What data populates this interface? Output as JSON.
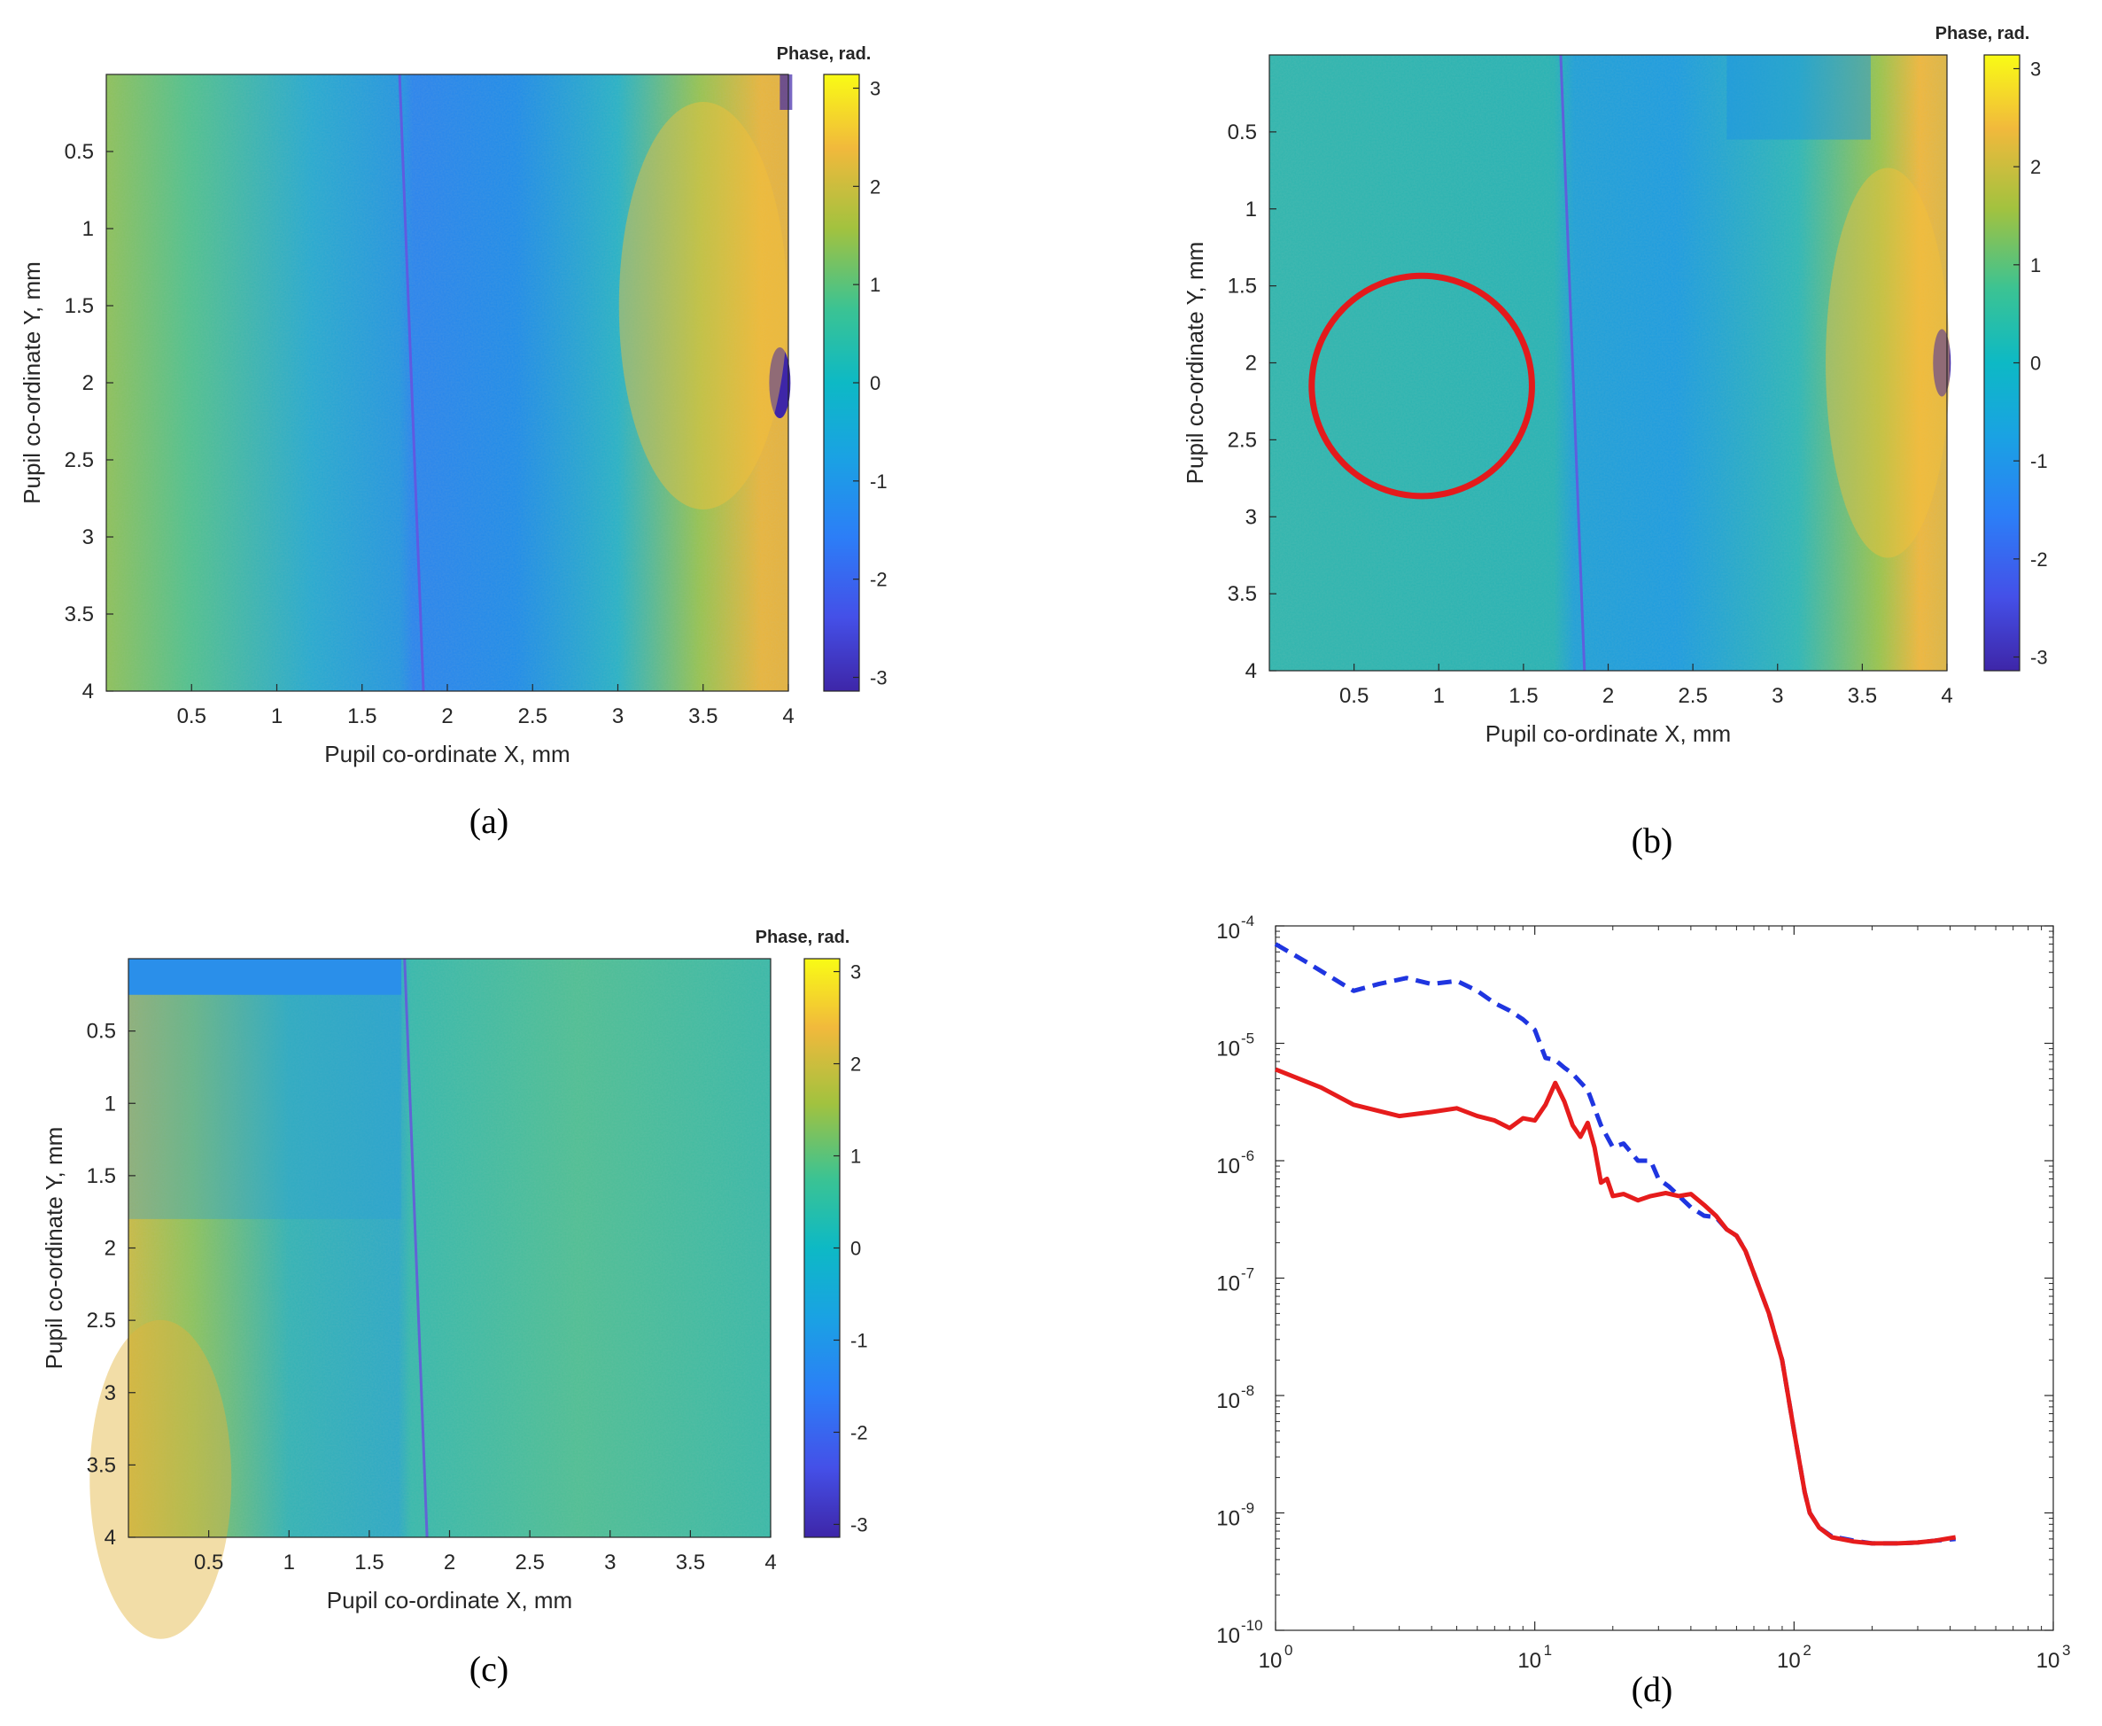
{
  "figure": {
    "panels": [
      {
        "id": "a",
        "label": "(a)"
      },
      {
        "id": "b",
        "label": "(b)"
      },
      {
        "id": "c",
        "label": "(c)"
      },
      {
        "id": "d",
        "label": "(d)"
      }
    ]
  },
  "chart_data": [
    {
      "panel": "a",
      "type": "heatmap",
      "title": "",
      "xlabel": "Pupil co-ordinate X, mm",
      "ylabel": "Pupil co-ordinate Y, mm",
      "xlim": [
        0,
        4
      ],
      "ylim": [
        0,
        4
      ],
      "xticks": [
        0.5,
        1,
        1.5,
        2,
        2.5,
        3,
        3.5,
        4
      ],
      "xtick_labels": [
        "0.5",
        "1",
        "1.5",
        "2",
        "2.5",
        "3",
        "3.5",
        "4"
      ],
      "yticks": [
        0.5,
        1,
        1.5,
        2,
        2.5,
        3,
        3.5,
        4
      ],
      "ytick_labels": [
        "0.5",
        "1",
        "1.5",
        "2",
        "2.5",
        "3",
        "3.5",
        "4"
      ],
      "colorbar": {
        "label": "Phase, rad.",
        "min": -3.14,
        "max": 3.14,
        "ticks": [
          -3,
          -2,
          -1,
          0,
          1,
          2,
          3
        ],
        "tick_labels": [
          "-3",
          "-2",
          "-1",
          "0",
          "1",
          "2",
          "3"
        ]
      },
      "description_values": {
        "phase_step_x_mm": 1.8
      }
    },
    {
      "panel": "b",
      "type": "heatmap",
      "title": "",
      "xlabel": "Pupil co-ordinate X, mm",
      "ylabel": "Pupil co-ordinate Y, mm",
      "xlim": [
        0,
        4
      ],
      "ylim": [
        0,
        4
      ],
      "xticks": [
        0.5,
        1,
        1.5,
        2,
        2.5,
        3,
        3.5,
        4
      ],
      "xtick_labels": [
        "0.5",
        "1",
        "1.5",
        "2",
        "2.5",
        "3",
        "3.5",
        "4"
      ],
      "yticks": [
        0.5,
        1,
        1.5,
        2,
        2.5,
        3,
        3.5,
        4
      ],
      "ytick_labels": [
        "0.5",
        "1",
        "1.5",
        "2",
        "2.5",
        "3",
        "3.5",
        "4"
      ],
      "colorbar": {
        "label": "Phase, rad.",
        "min": -3.14,
        "max": 3.14,
        "ticks": [
          -3,
          -2,
          -1,
          0,
          1,
          2,
          3
        ],
        "tick_labels": [
          "-3",
          "-2",
          "-1",
          "0",
          "1",
          "2",
          "3"
        ]
      },
      "annotations": [
        {
          "type": "circle",
          "color": "#e31a1c",
          "center_mm": [
            0.9,
            2.15
          ],
          "radius_mm": 0.65
        }
      ]
    },
    {
      "panel": "c",
      "type": "heatmap",
      "title": "",
      "xlabel": "Pupil co-ordinate X, mm",
      "ylabel": "Pupil co-ordinate Y, mm",
      "xlim": [
        0,
        4
      ],
      "ylim": [
        0,
        4
      ],
      "xticks": [
        0.5,
        1,
        1.5,
        2,
        2.5,
        3,
        3.5,
        4
      ],
      "xtick_labels": [
        "0.5",
        "1",
        "1.5",
        "2",
        "2.5",
        "3",
        "3.5",
        "4"
      ],
      "yticks": [
        0.5,
        1,
        1.5,
        2,
        2.5,
        3,
        3.5,
        4
      ],
      "ytick_labels": [
        "0.5",
        "1",
        "1.5",
        "2",
        "2.5",
        "3",
        "3.5",
        "4"
      ],
      "colorbar": {
        "label": "Phase, rad.",
        "min": -3.14,
        "max": 3.14,
        "ticks": [
          -3,
          -2,
          -1,
          0,
          1,
          2,
          3
        ],
        "tick_labels": [
          "-3",
          "-2",
          "-1",
          "0",
          "1",
          "2",
          "3"
        ]
      }
    },
    {
      "panel": "d",
      "type": "line",
      "title": "",
      "xlabel": "",
      "ylabel": "",
      "xscale": "log",
      "yscale": "log",
      "xlim": [
        1,
        1000
      ],
      "ylim": [
        1e-10,
        0.0001
      ],
      "xticks": [
        1,
        10,
        100,
        1000
      ],
      "xtick_labels": [
        {
          "base": "10",
          "exp": "0"
        },
        {
          "base": "10",
          "exp": "1"
        },
        {
          "base": "10",
          "exp": "2"
        },
        {
          "base": "10",
          "exp": "3"
        }
      ],
      "yticks": [
        1e-10,
        1e-09,
        1e-08,
        1e-07,
        1e-06,
        1e-05,
        0.0001
      ],
      "ytick_labels": [
        {
          "base": "10",
          "exp": "-10"
        },
        {
          "base": "10",
          "exp": "-9"
        },
        {
          "base": "10",
          "exp": "-8"
        },
        {
          "base": "10",
          "exp": "-7"
        },
        {
          "base": "10",
          "exp": "-6"
        },
        {
          "base": "10",
          "exp": "-5"
        },
        {
          "base": "10",
          "exp": "-4"
        }
      ],
      "series": [
        {
          "name": "dashed-blue",
          "color": "#1f35e0",
          "style": "dashed",
          "x": [
            1,
            1.3,
            2,
            2.5,
            3.2,
            4,
            5,
            6,
            7,
            8,
            9,
            10,
            11,
            12,
            13,
            14,
            16,
            18,
            20,
            22,
            25,
            28,
            30,
            33,
            36,
            40,
            45,
            50,
            55,
            60,
            65,
            70,
            80,
            90,
            100,
            110,
            115,
            125,
            140,
            170,
            200,
            250,
            300,
            350,
            420
          ],
          "y": [
            7e-05,
            5e-05,
            2.8e-05,
            3.2e-05,
            3.6e-05,
            3.2e-05,
            3.4e-05,
            2.8e-05,
            2.2e-05,
            1.9e-05,
            1.6e-05,
            1.3e-05,
            7.5e-06,
            7.2e-06,
            6.2e-06,
            5.5e-06,
            4e-06,
            2e-06,
            1.3e-06,
            1.4e-06,
            1e-06,
            1e-06,
            7e-07,
            6e-07,
            5e-07,
            4e-07,
            3.4e-07,
            3.3e-07,
            2.6e-07,
            2.3e-07,
            1.7e-07,
            1.1e-07,
            5e-08,
            2e-08,
            5e-09,
            1.5e-09,
            1e-09,
            7.5e-10,
            6.3e-10,
            5.8e-10,
            5.5e-10,
            5.5e-10,
            5.6e-10,
            5.8e-10,
            6e-10
          ]
        },
        {
          "name": "solid-red",
          "color": "#e61c1c",
          "style": "solid",
          "x": [
            1,
            1.5,
            2,
            3,
            4,
            5,
            6,
            7,
            8,
            9,
            10,
            11,
            12,
            13,
            14,
            15,
            16,
            17,
            18,
            19,
            20,
            22,
            25,
            28,
            32,
            36,
            40,
            45,
            50,
            55,
            60,
            65,
            70,
            80,
            90,
            100,
            110,
            115,
            125,
            140,
            170,
            200,
            250,
            300,
            350,
            420
          ],
          "y": [
            6e-06,
            4.2e-06,
            3e-06,
            2.4e-06,
            2.6e-06,
            2.8e-06,
            2.4e-06,
            2.2e-06,
            1.9e-06,
            2.3e-06,
            2.2e-06,
            3e-06,
            4.6e-06,
            3.2e-06,
            2e-06,
            1.6e-06,
            2.1e-06,
            1.3e-06,
            6.5e-07,
            7e-07,
            5e-07,
            5.2e-07,
            4.6e-07,
            5e-07,
            5.3e-07,
            5e-07,
            5.2e-07,
            4.2e-07,
            3.4e-07,
            2.6e-07,
            2.3e-07,
            1.7e-07,
            1.1e-07,
            5e-08,
            2e-08,
            5e-09,
            1.5e-09,
            1e-09,
            7.5e-10,
            6.2e-10,
            5.7e-10,
            5.5e-10,
            5.5e-10,
            5.6e-10,
            5.8e-10,
            6.2e-10
          ]
        }
      ]
    }
  ]
}
